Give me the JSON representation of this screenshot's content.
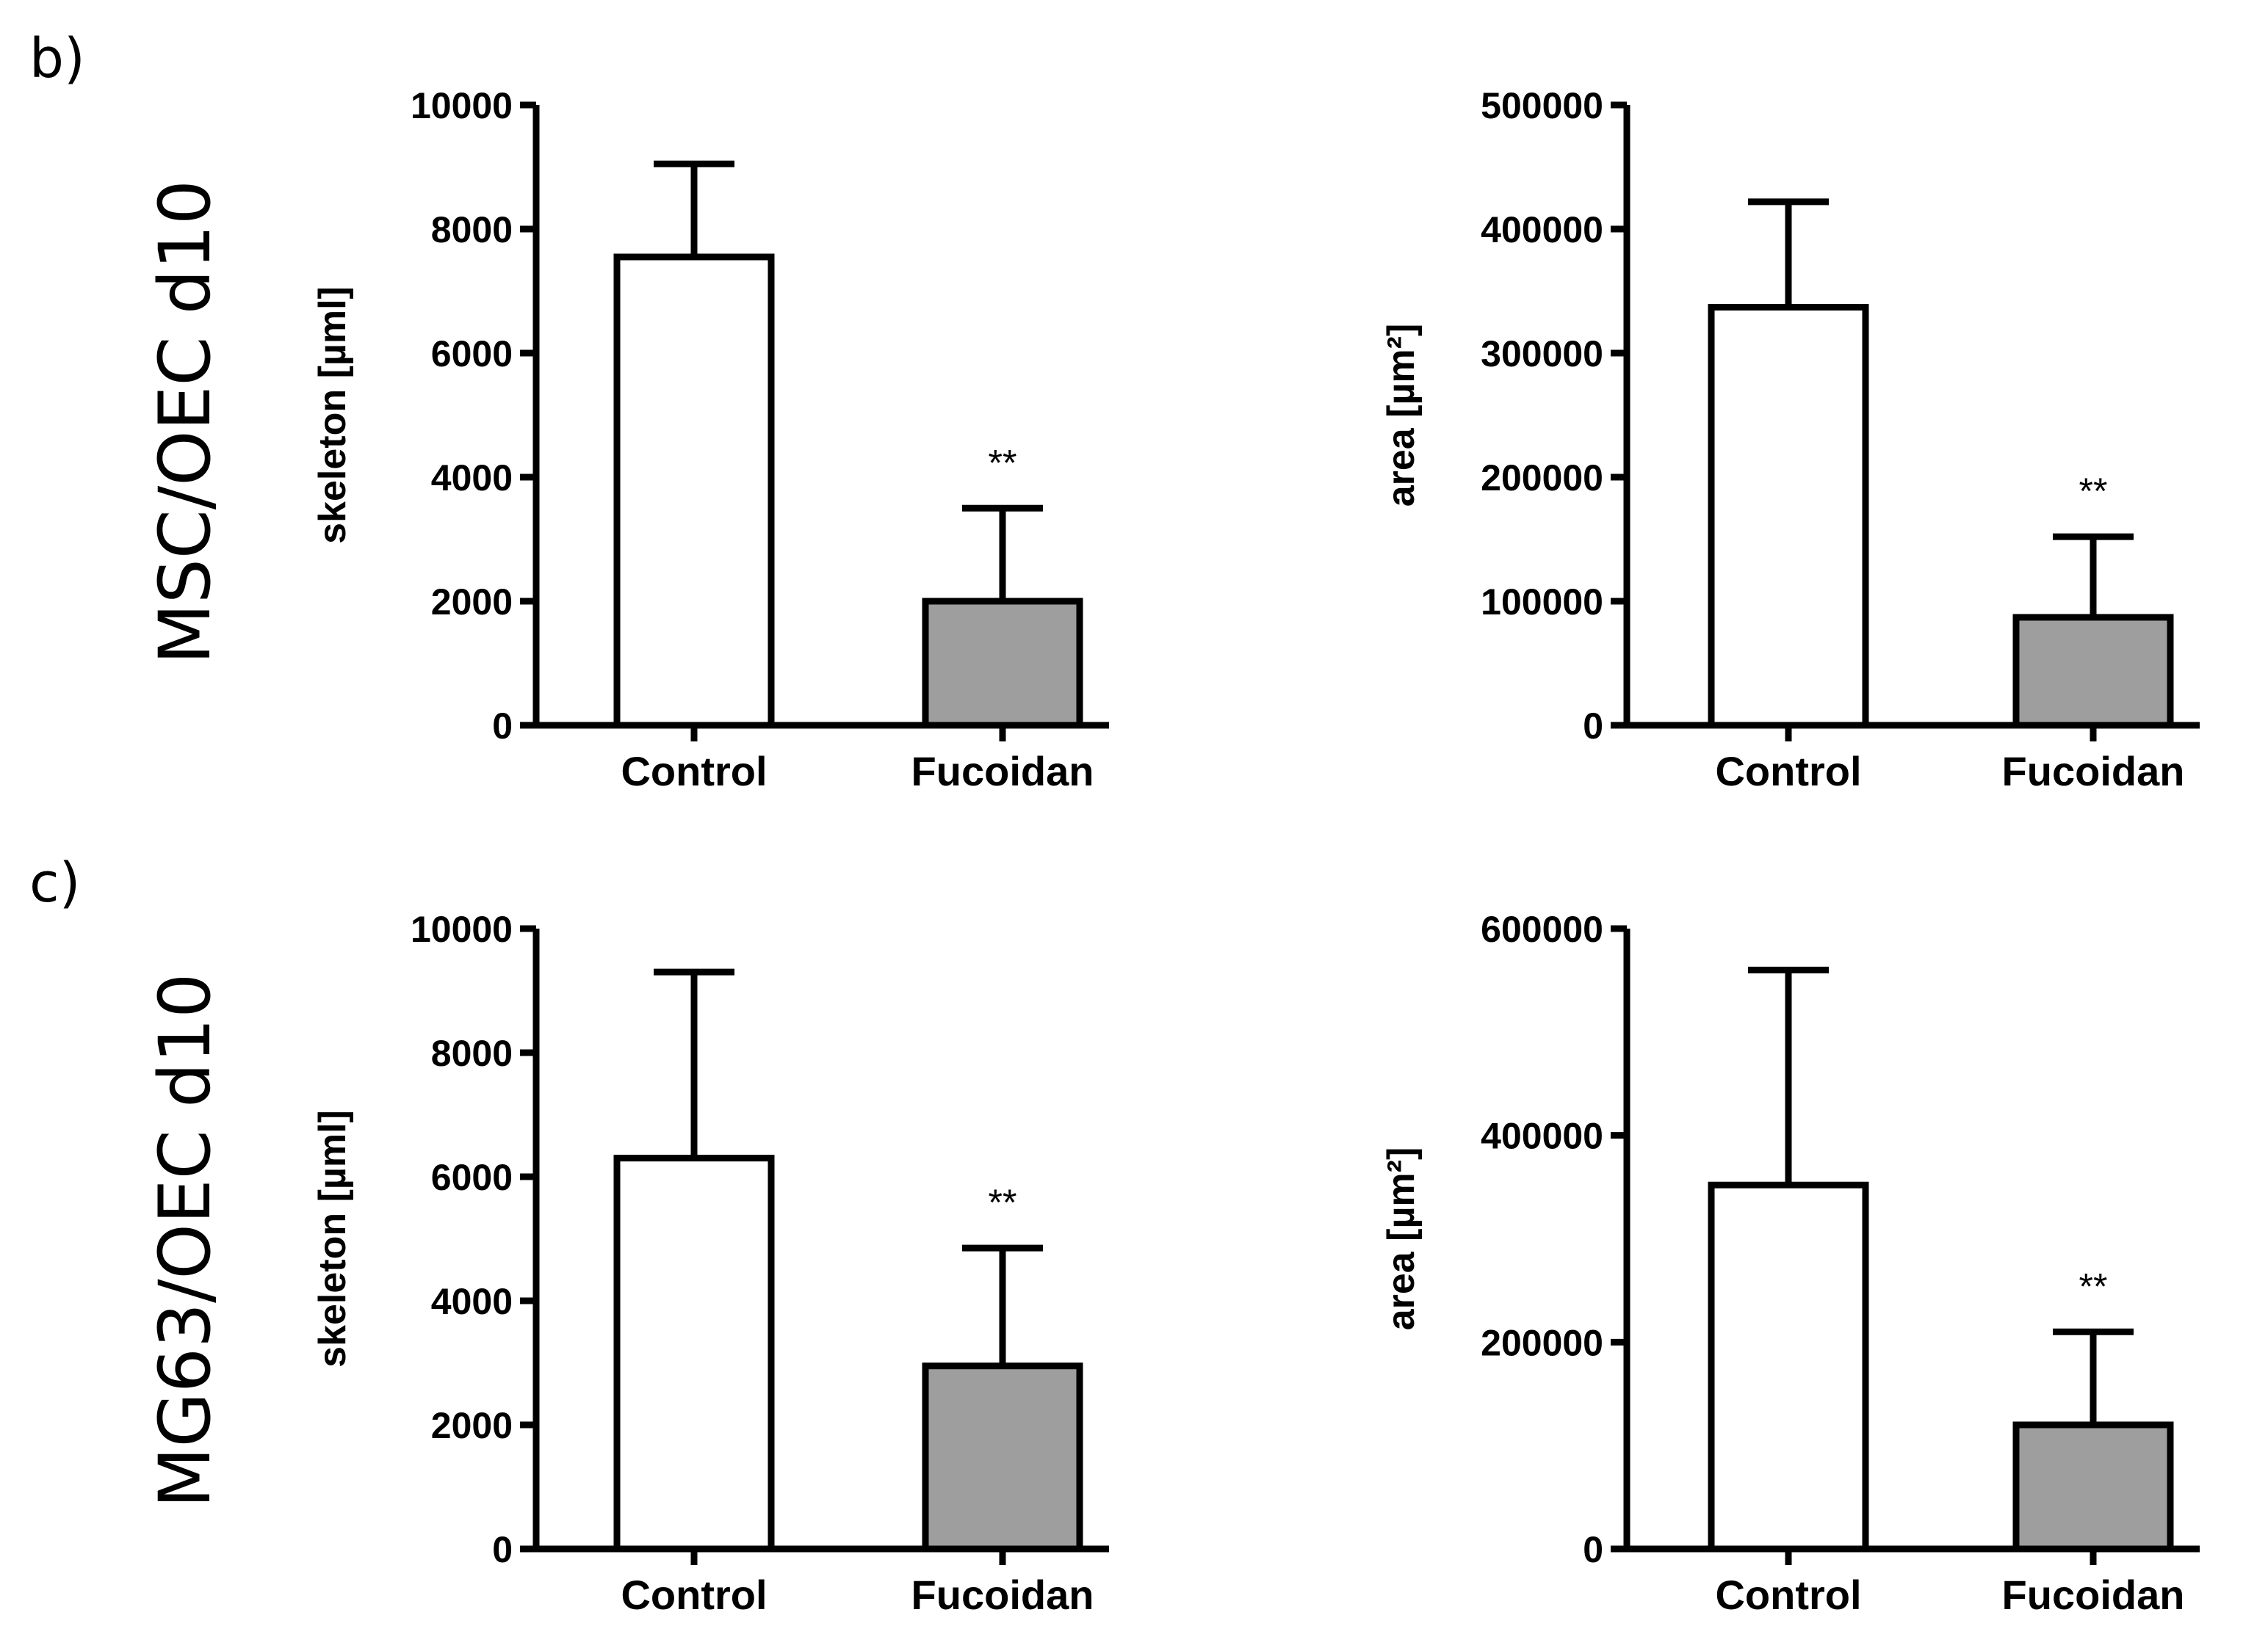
{
  "figure": {
    "panel_b_label": "b)",
    "panel_c_label": "c)",
    "row_b_label": "MSC/OEC d10",
    "row_c_label": "MG63/OEC d10"
  },
  "colors": {
    "control_fill": "#ffffff",
    "fucoidan_fill": "#9e9e9e",
    "stroke": "#000000"
  },
  "chart_data": [
    {
      "id": "b-skeleton",
      "type": "bar",
      "categories": [
        "Control",
        "Fucoidan"
      ],
      "values": [
        7550,
        2000
      ],
      "errors": [
        1500,
        1500
      ],
      "significance": [
        "",
        "**"
      ],
      "ylabel": "skeleton [µml]",
      "ylim": [
        0,
        10000
      ],
      "yticks": [
        0,
        2000,
        4000,
        6000,
        8000,
        10000
      ],
      "ytick_labels": [
        "0",
        "2000",
        "4000",
        "6000",
        "8000",
        "10000"
      ]
    },
    {
      "id": "b-area",
      "type": "bar",
      "categories": [
        "Control",
        "Fucoidan"
      ],
      "values": [
        337000,
        87000
      ],
      "errors": [
        85000,
        65000
      ],
      "significance": [
        "",
        "**"
      ],
      "ylabel": "area [µm²]",
      "ylim": [
        0,
        500000
      ],
      "yticks": [
        0,
        100000,
        200000,
        300000,
        400000,
        500000
      ],
      "ytick_labels": [
        "0",
        "100000",
        "200000",
        "300000",
        "400000",
        "500000"
      ]
    },
    {
      "id": "c-skeleton",
      "type": "bar",
      "categories": [
        "Control",
        "Fucoidan"
      ],
      "values": [
        6300,
        2950
      ],
      "errors": [
        3000,
        1900
      ],
      "significance": [
        "",
        "**"
      ],
      "ylabel": "skeleton [µml]",
      "ylim": [
        0,
        10000
      ],
      "yticks": [
        0,
        2000,
        4000,
        6000,
        8000,
        10000
      ],
      "ytick_labels": [
        "0",
        "2000",
        "4000",
        "6000",
        "8000",
        "10000"
      ]
    },
    {
      "id": "c-area",
      "type": "bar",
      "categories": [
        "Control",
        "Fucoidan"
      ],
      "values": [
        352000,
        120000
      ],
      "errors": [
        208000,
        90000
      ],
      "significance": [
        "",
        "**"
      ],
      "ylabel": "area [µm²]",
      "ylim": [
        0,
        600000
      ],
      "yticks": [
        0,
        200000,
        400000,
        600000
      ],
      "ytick_labels": [
        "0",
        "200000",
        "400000",
        "600000"
      ]
    }
  ]
}
